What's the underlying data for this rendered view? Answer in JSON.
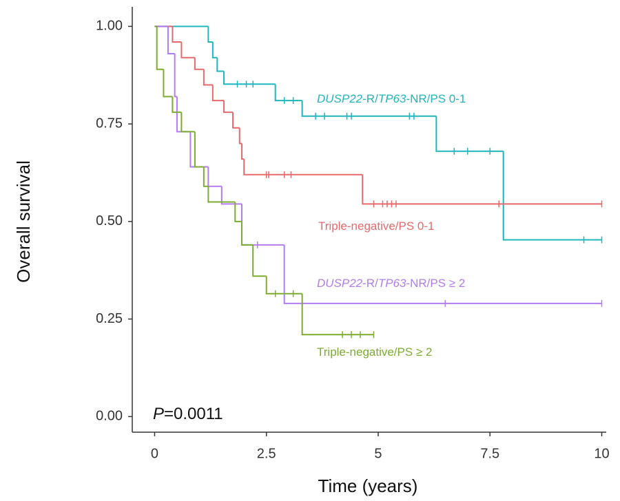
{
  "chart_data": {
    "type": "survival",
    "x_label": "Time (years)",
    "y_label": "Overall survival",
    "xlim": [
      -0.5,
      10.1
    ],
    "ylim": [
      -0.04,
      1.05
    ],
    "xticks": [
      0,
      2.5,
      5,
      7.5,
      10
    ],
    "yticks": [
      {
        "value": 0,
        "label": "0.00"
      },
      {
        "value": 0.25,
        "label": "0.25"
      },
      {
        "value": 0.5,
        "label": "0.50"
      },
      {
        "value": 0.75,
        "label": "0.75"
      },
      {
        "value": 1,
        "label": "1.00"
      }
    ],
    "grid": false,
    "annotation": [
      {
        "text": "P",
        "italic": true
      },
      {
        "text": "=0.0011",
        "italic": false
      }
    ],
    "series": [
      {
        "name": [
          {
            "text": "DUSP22",
            "italic": true
          },
          {
            "text": "-R/",
            "italic": false
          },
          {
            "text": "TP63",
            "italic": true
          },
          {
            "text": "-NR/PS 0-1",
            "italic": false
          }
        ],
        "color": "#1fb5bd",
        "x": [
          0,
          1.2,
          1.3,
          1.4,
          1.55,
          2.7,
          3.3,
          6.3,
          7.8,
          10
        ],
        "values": [
          1,
          0.96,
          0.92,
          0.885,
          0.852,
          0.81,
          0.77,
          0.68,
          0.453,
          0.453
        ],
        "censor_x": [
          1.85,
          2.05,
          2.2,
          2.9,
          3.1,
          3.6,
          3.8,
          4.3,
          4.4,
          5.7,
          5.8,
          6.7,
          7.0,
          7.5,
          9.6,
          10
        ],
        "censor_values": [
          0.852,
          0.852,
          0.852,
          0.81,
          0.81,
          0.77,
          0.77,
          0.77,
          0.77,
          0.77,
          0.77,
          0.68,
          0.68,
          0.68,
          0.453,
          0.453
        ]
      },
      {
        "name": [
          {
            "text": "Triple-negative/PS 0-1",
            "italic": false
          }
        ],
        "color": "#e8696b",
        "x": [
          0,
          0.4,
          0.6,
          0.9,
          1.1,
          1.3,
          1.55,
          1.75,
          1.9,
          1.95,
          2.0,
          4.65,
          10
        ],
        "values": [
          1,
          0.96,
          0.92,
          0.89,
          0.85,
          0.81,
          0.78,
          0.74,
          0.7,
          0.66,
          0.62,
          0.545,
          0.545
        ],
        "censor_x": [
          2.5,
          2.55,
          2.9,
          3.05,
          4.9,
          5.1,
          5.2,
          5.3,
          5.4,
          7.7,
          10
        ],
        "censor_values": [
          0.62,
          0.62,
          0.62,
          0.62,
          0.545,
          0.545,
          0.545,
          0.545,
          0.545,
          0.545,
          0.545
        ]
      },
      {
        "name": [
          {
            "text": "DUSP22",
            "italic": true
          },
          {
            "text": "-R/",
            "italic": false
          },
          {
            "text": "TP63",
            "italic": true
          },
          {
            "text": "-NR/PS ≥ 2",
            "italic": false
          }
        ],
        "color": "#b27cf0",
        "x": [
          0,
          0.3,
          0.45,
          0.5,
          0.8,
          1.2,
          1.5,
          1.95,
          2.9,
          10
        ],
        "values": [
          1,
          0.93,
          0.82,
          0.73,
          0.64,
          0.59,
          0.545,
          0.44,
          0.29,
          0.29
        ],
        "censor_x": [
          2.3,
          6.5,
          10
        ],
        "censor_values": [
          0.44,
          0.29,
          0.29
        ]
      },
      {
        "name": [
          {
            "text": "Triple-negative/PS ≥ 2",
            "italic": false
          }
        ],
        "color": "#7bac2f",
        "x": [
          0,
          0.05,
          0.2,
          0.4,
          0.6,
          0.9,
          1.1,
          1.2,
          1.8,
          1.95,
          2.2,
          2.5,
          3.3,
          4.9
        ],
        "values": [
          1,
          0.89,
          0.82,
          0.78,
          0.73,
          0.64,
          0.59,
          0.55,
          0.5,
          0.44,
          0.36,
          0.315,
          0.21,
          0.21
        ],
        "censor_x": [
          2.7,
          3.1,
          4.2,
          4.4,
          4.6,
          4.9
        ],
        "censor_values": [
          0.315,
          0.315,
          0.21,
          0.21,
          0.21,
          0.21
        ]
      }
    ]
  }
}
